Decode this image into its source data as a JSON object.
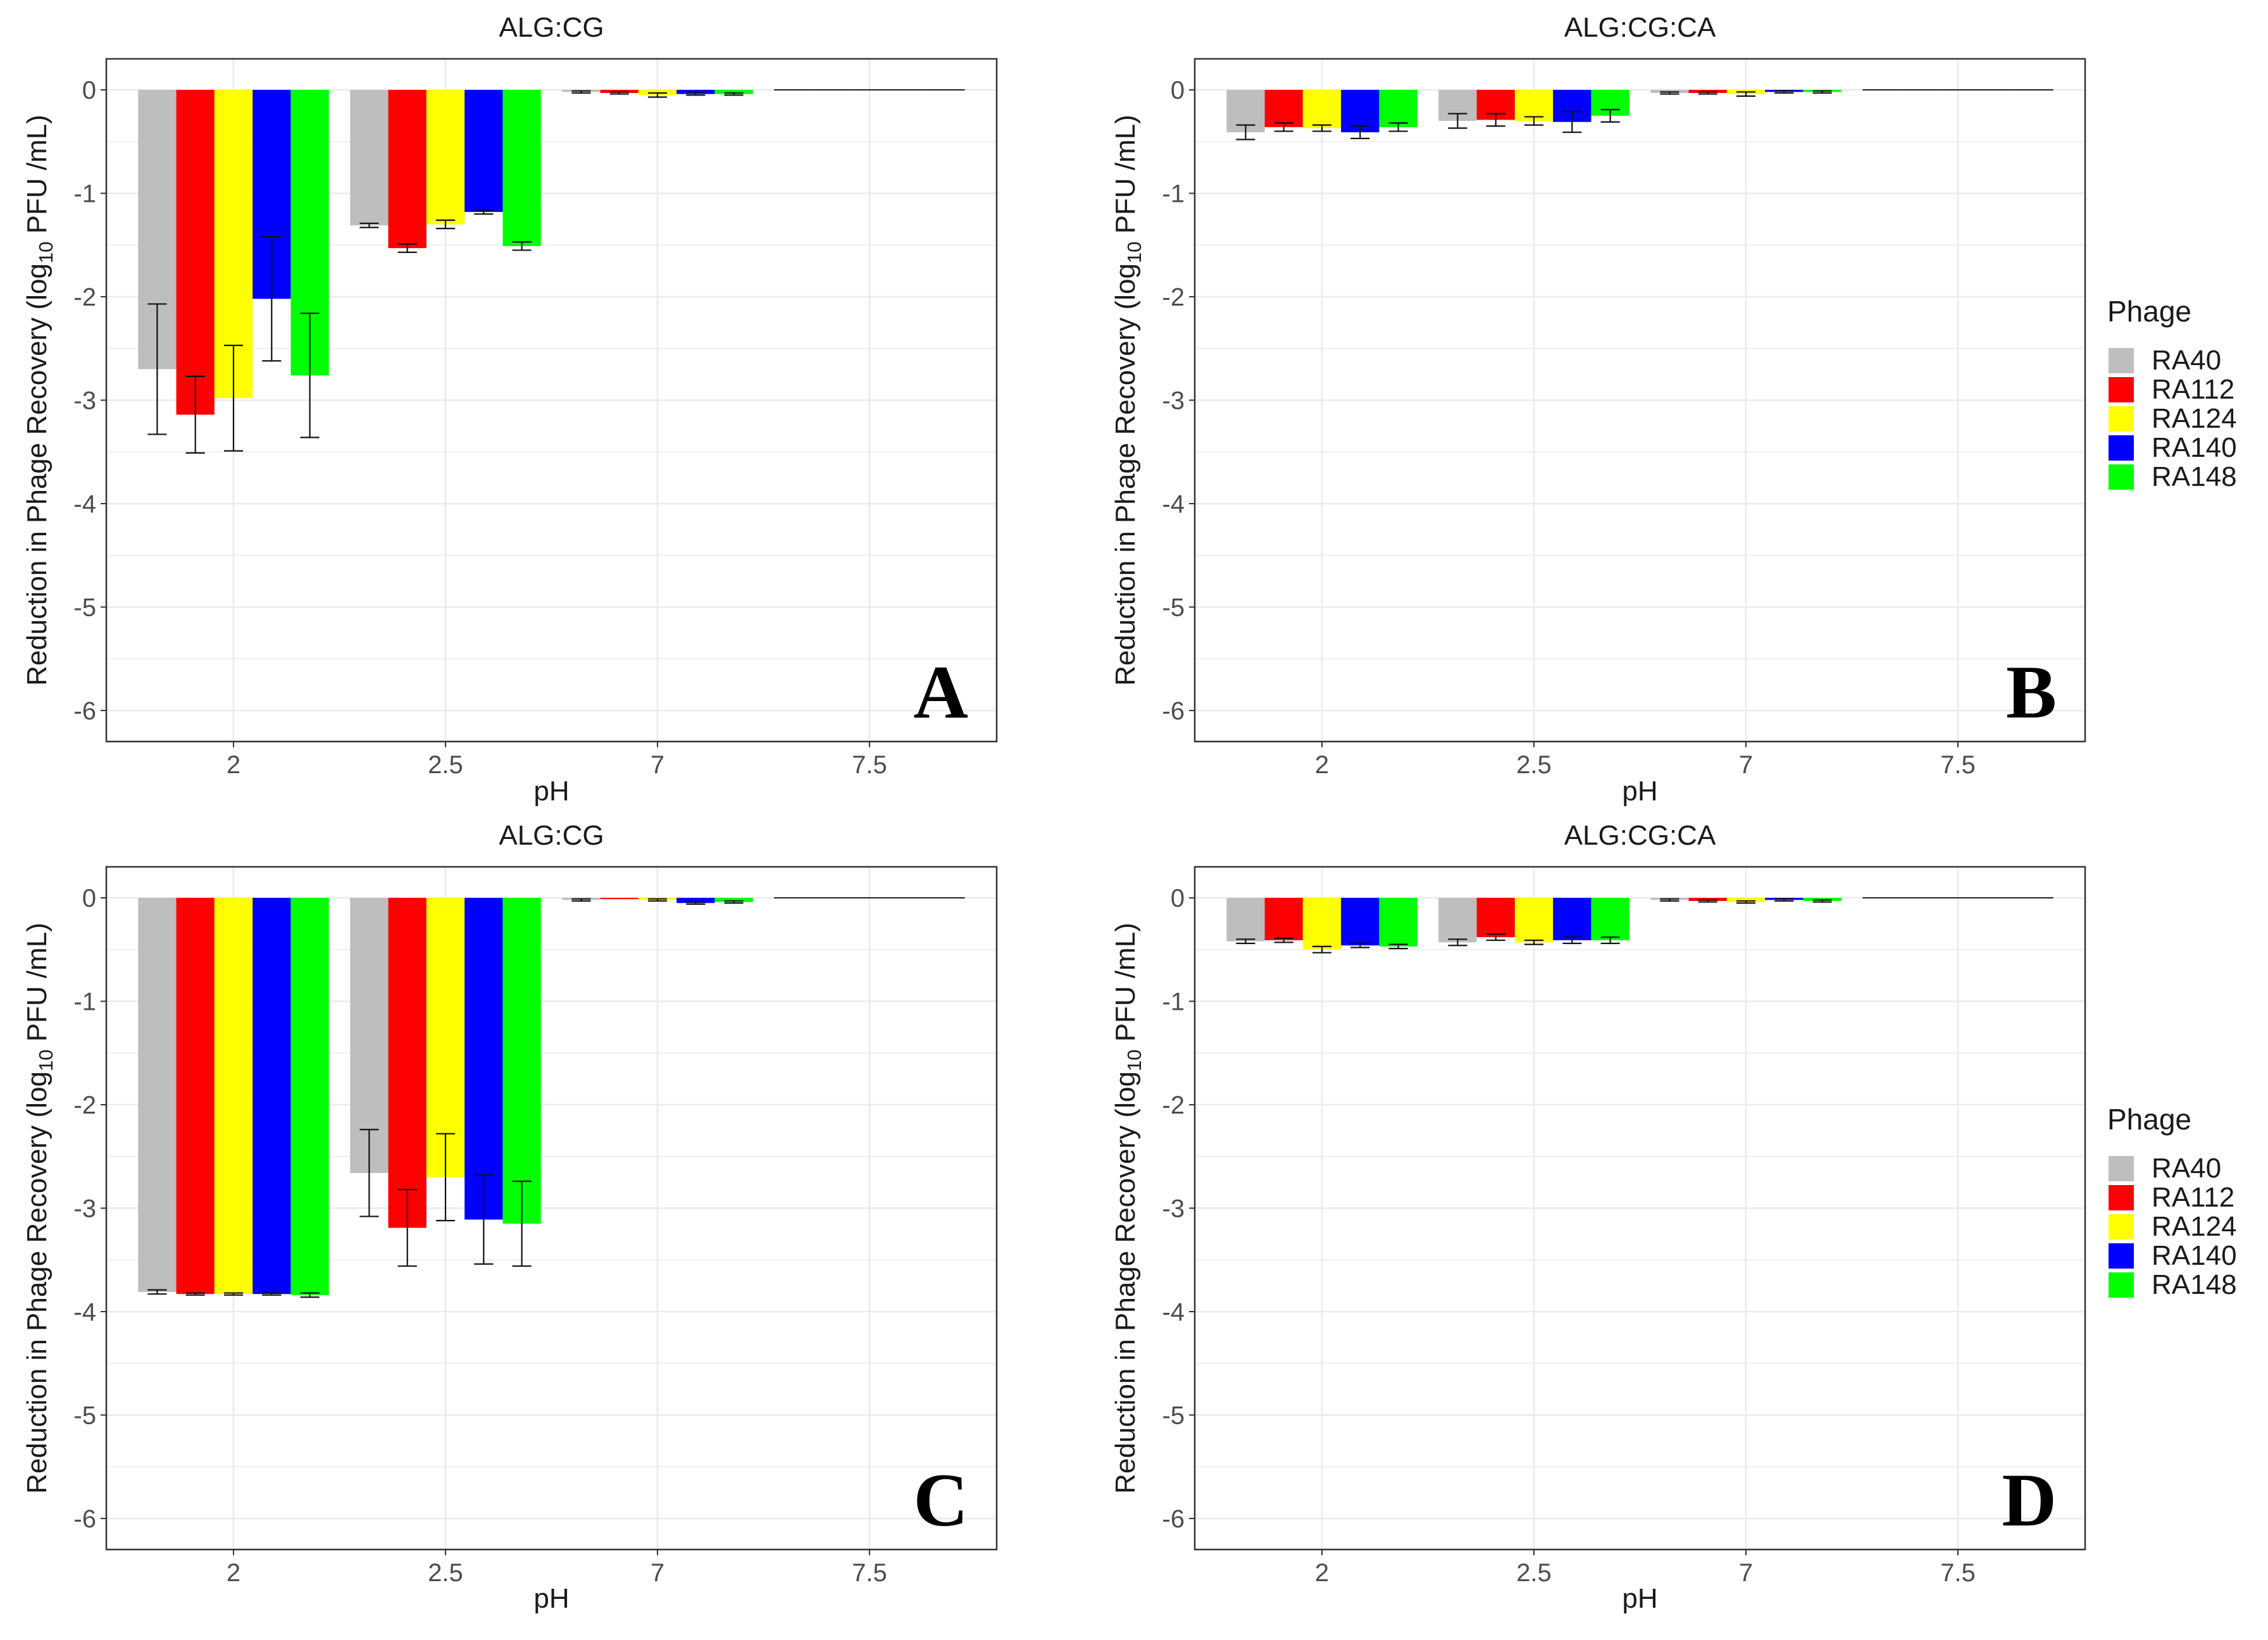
{
  "figure": {
    "background": "#ffffff",
    "grid_color": "#ebebeb",
    "frame_color": "#333333"
  },
  "legend": {
    "title": "Phage",
    "items": [
      {
        "name": "RA40",
        "color": "#bebebe"
      },
      {
        "name": "RA112",
        "color": "#ff0000"
      },
      {
        "name": "RA124",
        "color": "#ffff00"
      },
      {
        "name": "RA140",
        "color": "#0000ff"
      },
      {
        "name": "RA148",
        "color": "#00ff00"
      }
    ]
  },
  "chart_data": [
    {
      "type": "bar",
      "panel": "A",
      "title": "ALG:CG",
      "xlabel": "pH",
      "ylabel": "Reduction in Phage Recovery (log10 PFU /mL)",
      "ylim": [
        -6.3,
        0.3
      ],
      "yticks": [
        0,
        -1,
        -2,
        -3,
        -4,
        -5,
        -6
      ],
      "categories": [
        "2",
        "2.5",
        "7",
        "7.5"
      ],
      "series": [
        {
          "name": "RA40",
          "values": [
            -2.7,
            -1.31,
            -0.02,
            0
          ],
          "errors": [
            0.63,
            0.02,
            0.01,
            0
          ]
        },
        {
          "name": "RA112",
          "values": [
            -3.14,
            -1.53,
            -0.03,
            0
          ],
          "errors": [
            0.37,
            0.04,
            0.01,
            0
          ]
        },
        {
          "name": "RA124",
          "values": [
            -2.98,
            -1.3,
            -0.05,
            0
          ],
          "errors": [
            0.51,
            0.04,
            0.02,
            0
          ]
        },
        {
          "name": "RA140",
          "values": [
            -2.02,
            -1.18,
            -0.04,
            0
          ],
          "errors": [
            0.6,
            0.02,
            0.01,
            0
          ]
        },
        {
          "name": "RA148",
          "values": [
            -2.76,
            -1.51,
            -0.04,
            0
          ],
          "errors": [
            0.6,
            0.04,
            0.01,
            0
          ]
        }
      ]
    },
    {
      "type": "bar",
      "panel": "B",
      "title": "ALG:CG:CA",
      "xlabel": "pH",
      "ylabel": "Reduction in Phage Recovery (log10 PFU /mL)",
      "ylim": [
        -6.3,
        0.3
      ],
      "yticks": [
        0,
        -1,
        -2,
        -3,
        -4,
        -5,
        -6
      ],
      "categories": [
        "2",
        "2.5",
        "7",
        "7.5"
      ],
      "series": [
        {
          "name": "RA40",
          "values": [
            -0.41,
            -0.3,
            -0.03,
            0
          ],
          "errors": [
            0.07,
            0.07,
            0.01,
            0
          ]
        },
        {
          "name": "RA112",
          "values": [
            -0.36,
            -0.29,
            -0.03,
            0
          ],
          "errors": [
            0.04,
            0.06,
            0.01,
            0
          ]
        },
        {
          "name": "RA124",
          "values": [
            -0.37,
            -0.3,
            -0.04,
            0
          ],
          "errors": [
            0.03,
            0.04,
            0.02,
            0
          ]
        },
        {
          "name": "RA140",
          "values": [
            -0.41,
            -0.31,
            -0.02,
            0
          ],
          "errors": [
            0.06,
            0.1,
            0.01,
            0
          ]
        },
        {
          "name": "RA148",
          "values": [
            -0.36,
            -0.25,
            -0.02,
            0
          ],
          "errors": [
            0.04,
            0.06,
            0.01,
            0
          ]
        }
      ]
    },
    {
      "type": "bar",
      "panel": "C",
      "title": "ALG:CG",
      "xlabel": "pH",
      "ylabel": "Reduction in Phage Recovery (log10 PFU /mL)",
      "ylim": [
        -6.3,
        0.3
      ],
      "yticks": [
        0,
        -1,
        -2,
        -3,
        -4,
        -5,
        -6
      ],
      "categories": [
        "2",
        "2.5",
        "7",
        "7.5"
      ],
      "series": [
        {
          "name": "RA40",
          "values": [
            -3.81,
            -2.66,
            -0.02,
            0
          ],
          "errors": [
            0.02,
            0.42,
            0.01,
            0
          ]
        },
        {
          "name": "RA112",
          "values": [
            -3.83,
            -3.19,
            -0.01,
            0
          ],
          "errors": [
            0.01,
            0.37,
            0,
            0
          ]
        },
        {
          "name": "RA124",
          "values": [
            -3.83,
            -2.7,
            -0.02,
            0
          ],
          "errors": [
            0.01,
            0.42,
            0.01,
            0
          ]
        },
        {
          "name": "RA140",
          "values": [
            -3.83,
            -3.11,
            -0.05,
            0
          ],
          "errors": [
            0.01,
            0.43,
            0.01,
            0
          ]
        },
        {
          "name": "RA148",
          "values": [
            -3.84,
            -3.15,
            -0.04,
            0
          ],
          "errors": [
            0.02,
            0.41,
            0.01,
            0
          ]
        }
      ]
    },
    {
      "type": "bar",
      "panel": "D",
      "title": "ALG:CG:CA",
      "xlabel": "pH",
      "ylabel": "Reduction in Phage Recovery (log10 PFU /mL)",
      "ylim": [
        -6.3,
        0.3
      ],
      "yticks": [
        0,
        -1,
        -2,
        -3,
        -4,
        -5,
        -6
      ],
      "categories": [
        "2",
        "2.5",
        "7",
        "7.5"
      ],
      "series": [
        {
          "name": "RA40",
          "values": [
            -0.42,
            -0.43,
            -0.02,
            0
          ],
          "errors": [
            0.02,
            0.03,
            0.01,
            0
          ]
        },
        {
          "name": "RA112",
          "values": [
            -0.41,
            -0.38,
            -0.03,
            0
          ],
          "errors": [
            0.02,
            0.03,
            0.01,
            0
          ]
        },
        {
          "name": "RA124",
          "values": [
            -0.5,
            -0.43,
            -0.04,
            0
          ],
          "errors": [
            0.03,
            0.02,
            0.01,
            0
          ]
        },
        {
          "name": "RA140",
          "values": [
            -0.46,
            -0.41,
            -0.02,
            0
          ],
          "errors": [
            0.02,
            0.03,
            0.01,
            0
          ]
        },
        {
          "name": "RA148",
          "values": [
            -0.47,
            -0.41,
            -0.03,
            0
          ],
          "errors": [
            0.02,
            0.03,
            0.01,
            0
          ]
        }
      ]
    }
  ]
}
